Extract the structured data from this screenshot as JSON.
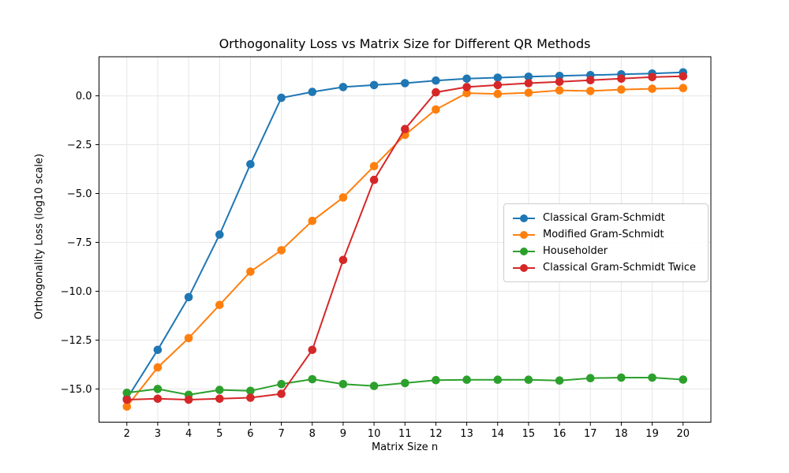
{
  "chart_data": {
    "type": "line",
    "title": "Orthogonality Loss vs Matrix Size for Different QR Methods",
    "xlabel": "Matrix Size n",
    "ylabel": "Orthogonality Loss (log10 scale)",
    "x": [
      2,
      3,
      4,
      5,
      6,
      7,
      8,
      9,
      10,
      11,
      12,
      13,
      14,
      15,
      16,
      17,
      18,
      19,
      20
    ],
    "series": [
      {
        "name": "Classical Gram-Schmidt",
        "color": "#1f77b4",
        "values": [
          -15.5,
          -13.0,
          -10.3,
          -7.1,
          -3.5,
          -0.1,
          0.2,
          0.45,
          0.55,
          0.65,
          0.78,
          0.88,
          0.93,
          0.98,
          1.02,
          1.06,
          1.1,
          1.14,
          1.2
        ]
      },
      {
        "name": "Modified Gram-Schmidt",
        "color": "#ff7f0e",
        "values": [
          -15.9,
          -13.9,
          -12.4,
          -10.7,
          -9.0,
          -7.9,
          -6.4,
          -5.2,
          -3.6,
          -2.0,
          -0.7,
          0.14,
          0.1,
          0.16,
          0.28,
          0.25,
          0.32,
          0.36,
          0.4
        ]
      },
      {
        "name": "Householder",
        "color": "#2ca02c",
        "values": [
          -15.2,
          -15.0,
          -15.3,
          -15.05,
          -15.1,
          -14.75,
          -14.5,
          -14.75,
          -14.85,
          -14.7,
          -14.55,
          -14.53,
          -14.53,
          -14.53,
          -14.57,
          -14.45,
          -14.42,
          -14.42,
          -14.52
        ]
      },
      {
        "name": "Classical Gram-Schmidt Twice",
        "color": "#d62728",
        "values": [
          -15.55,
          -15.5,
          -15.55,
          -15.5,
          -15.45,
          -15.25,
          -13.0,
          -8.4,
          -4.3,
          -1.7,
          0.18,
          0.45,
          0.55,
          0.65,
          0.72,
          0.8,
          0.88,
          0.96,
          1.0
        ]
      }
    ],
    "xticks": [
      2,
      3,
      4,
      5,
      6,
      7,
      8,
      9,
      10,
      11,
      12,
      13,
      14,
      15,
      16,
      17,
      18,
      19,
      20
    ],
    "yticks": [
      0.0,
      -2.5,
      -5.0,
      -7.5,
      -10.0,
      -12.5,
      -15.0
    ],
    "ytick_labels": [
      "0.0",
      "−2.5",
      "−5.0",
      "−7.5",
      "−10.0",
      "−12.5",
      "−15.0"
    ],
    "xlim": [
      1.1,
      20.9
    ],
    "ylim": [
      -16.7,
      2.0
    ],
    "grid": true,
    "legend_position": "center right",
    "grid_color": "#e6e6e6",
    "axis_color": "#000000"
  }
}
